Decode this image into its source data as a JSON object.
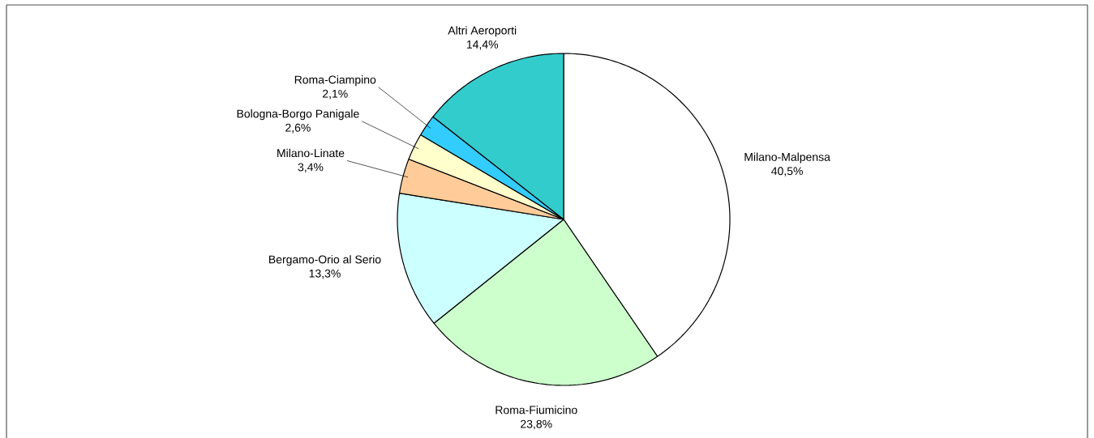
{
  "chart_data": {
    "type": "pie",
    "categories": [
      "Milano-Malpensa",
      "Roma-Fiumicino",
      "Bergamo-Orio al Serio",
      "Milano-Linate",
      "Bologna-Borgo Panigale",
      "Roma-Ciampino",
      "Altri Aeroporti"
    ],
    "values": [
      40.5,
      23.8,
      13.3,
      3.4,
      2.6,
      2.1,
      14.4
    ],
    "value_labels": [
      "40,5%",
      "23,8%",
      "13,3%",
      "3,4%",
      "2,6%",
      "2,1%",
      "14,4%"
    ],
    "colors": [
      "#ffffff",
      "#ccffcc",
      "#ccffff",
      "#ffcc99",
      "#ffffcc",
      "#33ccff",
      "#33cccc"
    ]
  }
}
